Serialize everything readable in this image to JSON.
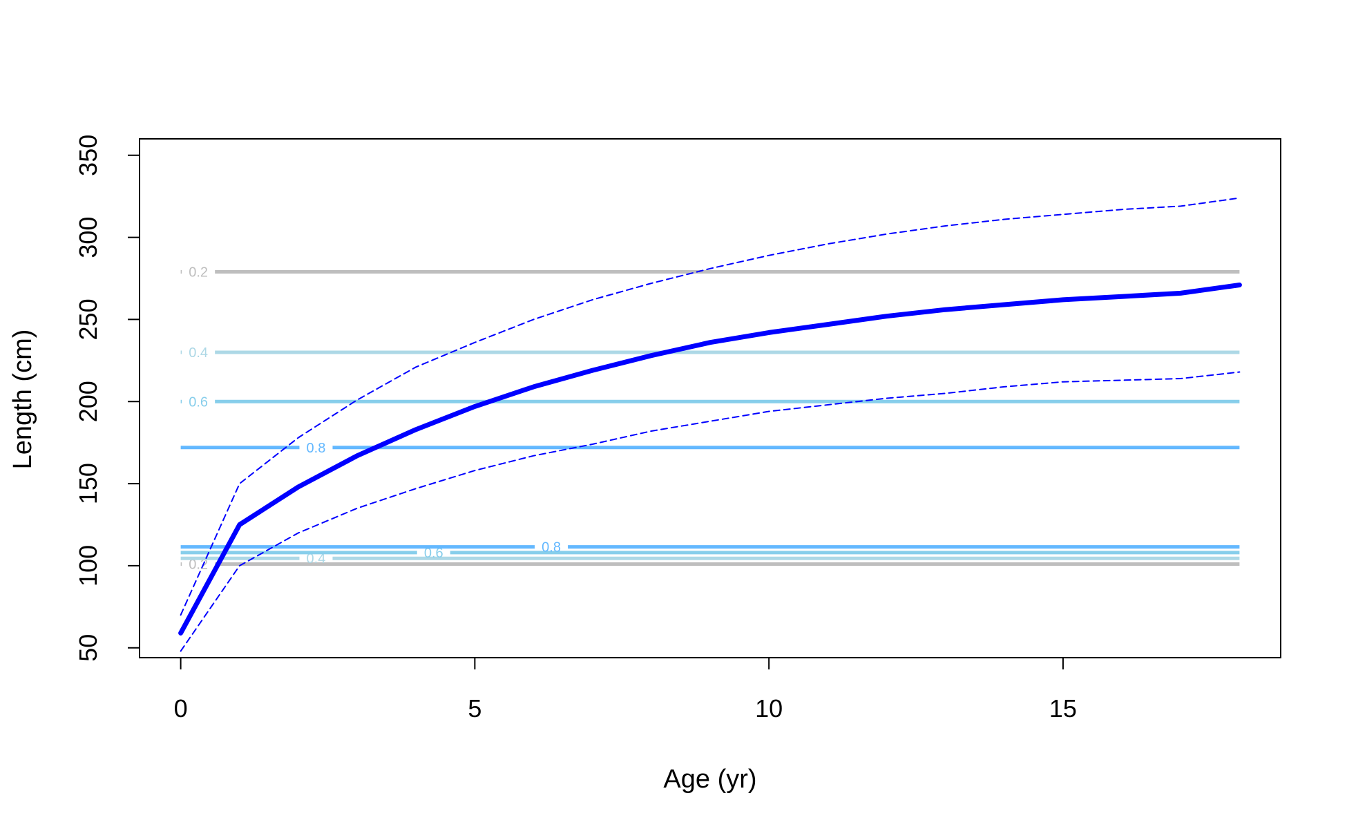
{
  "chart_data": {
    "type": "line",
    "xlabel": "Age (yr)",
    "ylabel": "Length (cm)",
    "xlim": [
      -0.7,
      18.7
    ],
    "ylim": [
      44,
      360
    ],
    "x_ticks": [
      0,
      5,
      10,
      15
    ],
    "y_ticks": [
      50,
      100,
      150,
      200,
      250,
      300,
      350
    ],
    "grid": false,
    "legend": "none",
    "series": [
      {
        "role": "mean",
        "color": "#0000ff",
        "style": "solid",
        "x": [
          0,
          1,
          2,
          3,
          4,
          5,
          6,
          7,
          8,
          9,
          10,
          11,
          12,
          13,
          14,
          15,
          16,
          17,
          18
        ],
        "values": [
          59,
          125,
          148,
          167,
          183,
          197,
          209,
          219,
          228,
          236,
          242,
          247,
          252,
          256,
          259,
          262,
          264,
          266,
          271
        ]
      },
      {
        "role": "upper",
        "color": "#0000ff",
        "style": "dashed",
        "x": [
          0,
          1,
          2,
          3,
          4,
          5,
          6,
          7,
          8,
          9,
          10,
          11,
          12,
          13,
          14,
          15,
          16,
          17,
          18
        ],
        "values": [
          70,
          150,
          178,
          201,
          221,
          236,
          250,
          262,
          272,
          281,
          289,
          296,
          302,
          307,
          311,
          314,
          317,
          319,
          324
        ]
      },
      {
        "role": "lower",
        "color": "#0000ff",
        "style": "dashed",
        "x": [
          0,
          1,
          2,
          3,
          4,
          5,
          6,
          7,
          8,
          9,
          10,
          11,
          12,
          13,
          14,
          15,
          16,
          17,
          18
        ],
        "values": [
          48,
          100,
          120,
          135,
          147,
          158,
          167,
          174,
          182,
          188,
          194,
          198,
          202,
          205,
          209,
          212,
          213,
          214,
          218
        ]
      }
    ],
    "contours": [
      {
        "level": "0.2",
        "y": 279,
        "color": "#bebebe",
        "label_x": 0.3
      },
      {
        "level": "0.4",
        "y": 230,
        "color": "#add8e6",
        "label_x": 0.3
      },
      {
        "level": "0.6",
        "y": 200,
        "color": "#87ceeb",
        "label_x": 0.3
      },
      {
        "level": "0.8",
        "y": 172,
        "color": "#63b8ff",
        "label_x": 2.3
      },
      {
        "level": "0.2",
        "y": 101,
        "color": "#bebebe",
        "label_x": 0.3
      },
      {
        "level": "0.4",
        "y": 104.5,
        "color": "#add8e6",
        "label_x": 2.3
      },
      {
        "level": "0.6",
        "y": 108,
        "color": "#87ceeb",
        "label_x": 4.3
      },
      {
        "level": "0.8",
        "y": 111.5,
        "color": "#63b8ff",
        "label_x": 6.3
      }
    ]
  }
}
